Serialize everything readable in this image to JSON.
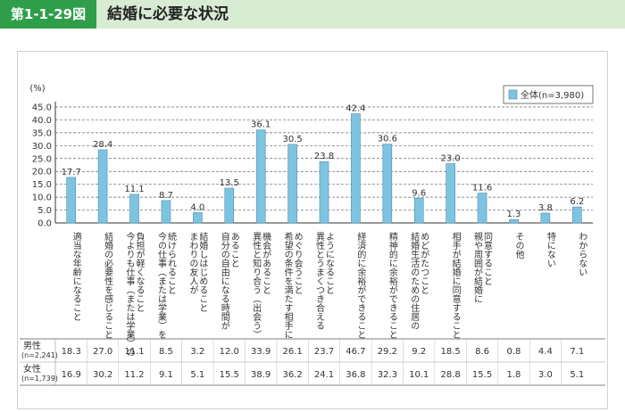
{
  "header": {
    "figure_label": "第1-1-29図",
    "title": "結婚に必要な状況"
  },
  "chart_data": {
    "type": "bar",
    "yunit": "(%)",
    "ylim": [
      0,
      45
    ],
    "yticks": [
      "0.0",
      "5.0",
      "10.0",
      "15.0",
      "20.0",
      "25.0",
      "30.0",
      "35.0",
      "40.0",
      "45.0"
    ],
    "grid": "dashed-horizontal",
    "legend_position": "top-right",
    "bar_color": "#7ec4e0",
    "categories": [
      "適当な年齢になること",
      "結婚の必要性を感じること",
      "今よりも仕事（または学業）の負担が軽くなること",
      "今の仕事（または学業）を続けられること",
      "まわりの友人が結婚しはじめること",
      "自分の自由になる時間があること",
      "異性と知り合う（出会う）機会があること",
      "希望の条件を満たす相手にめぐり会うこと",
      "異性とうまくつき合えるようになること",
      "経済的に余裕ができること",
      "精神的に余裕ができること",
      "結婚生活のための住居のめどがたつこと",
      "相手が結婚に同意すること",
      "親や周囲が結婚に同意すること",
      "その他",
      "特にない",
      "わからない"
    ],
    "category_lines": [
      [
        "適当な年齢になること"
      ],
      [
        "結婚の必要性を感じること"
      ],
      [
        "今よりも仕事（または学業）の",
        "負担が軽くなること"
      ],
      [
        "今の仕事（または学業）を",
        "続けられること"
      ],
      [
        "まわりの友人が",
        "結婚しはじめること"
      ],
      [
        "自分の自由になる時間が",
        "あること"
      ],
      [
        "異性と知り合う（出会う）",
        "機会があること"
      ],
      [
        "希望の条件を満たす相手に",
        "めぐり会うこと"
      ],
      [
        "異性とうまくつき合える",
        "ようになること"
      ],
      [
        "経済的に余裕ができること"
      ],
      [
        "精神的に余裕ができること"
      ],
      [
        "結婚生活のための住居の",
        "めどがたつこと"
      ],
      [
        "相手が結婚に同意すること"
      ],
      [
        "親や周囲が結婚に",
        "同意すること"
      ],
      [
        "その他"
      ],
      [
        "特にない"
      ],
      [
        "わからない"
      ]
    ],
    "series": [
      {
        "name": "全体(n=3,980)",
        "values": [
          17.7,
          28.4,
          11.1,
          8.7,
          4.0,
          13.5,
          36.1,
          30.5,
          23.8,
          42.4,
          30.6,
          9.6,
          23.0,
          11.6,
          1.3,
          3.8,
          6.2
        ]
      }
    ],
    "value_labels": [
      "17.7",
      "28.4",
      "11.1",
      "8.7",
      "4.0",
      "13.5",
      "36.1",
      "30.5",
      "23.8",
      "42.4",
      "30.6",
      "9.6",
      "23.0",
      "11.6",
      "1.3",
      "3.8",
      "6.2"
    ],
    "table": {
      "rows": [
        {
          "label": "男性",
          "sublabel": "(n=2,241)",
          "values": [
            "18.3",
            "27.0",
            "11.1",
            "8.5",
            "3.2",
            "12.0",
            "33.9",
            "26.1",
            "23.7",
            "46.7",
            "29.2",
            "9.2",
            "18.5",
            "8.6",
            "0.8",
            "4.4",
            "7.1"
          ]
        },
        {
          "label": "女性",
          "sublabel": "(n=1,739)",
          "values": [
            "16.9",
            "30.2",
            "11.2",
            "9.1",
            "5.1",
            "15.5",
            "38.9",
            "36.2",
            "24.1",
            "36.8",
            "32.3",
            "10.1",
            "28.8",
            "15.5",
            "1.8",
            "3.0",
            "5.1"
          ]
        }
      ]
    }
  }
}
